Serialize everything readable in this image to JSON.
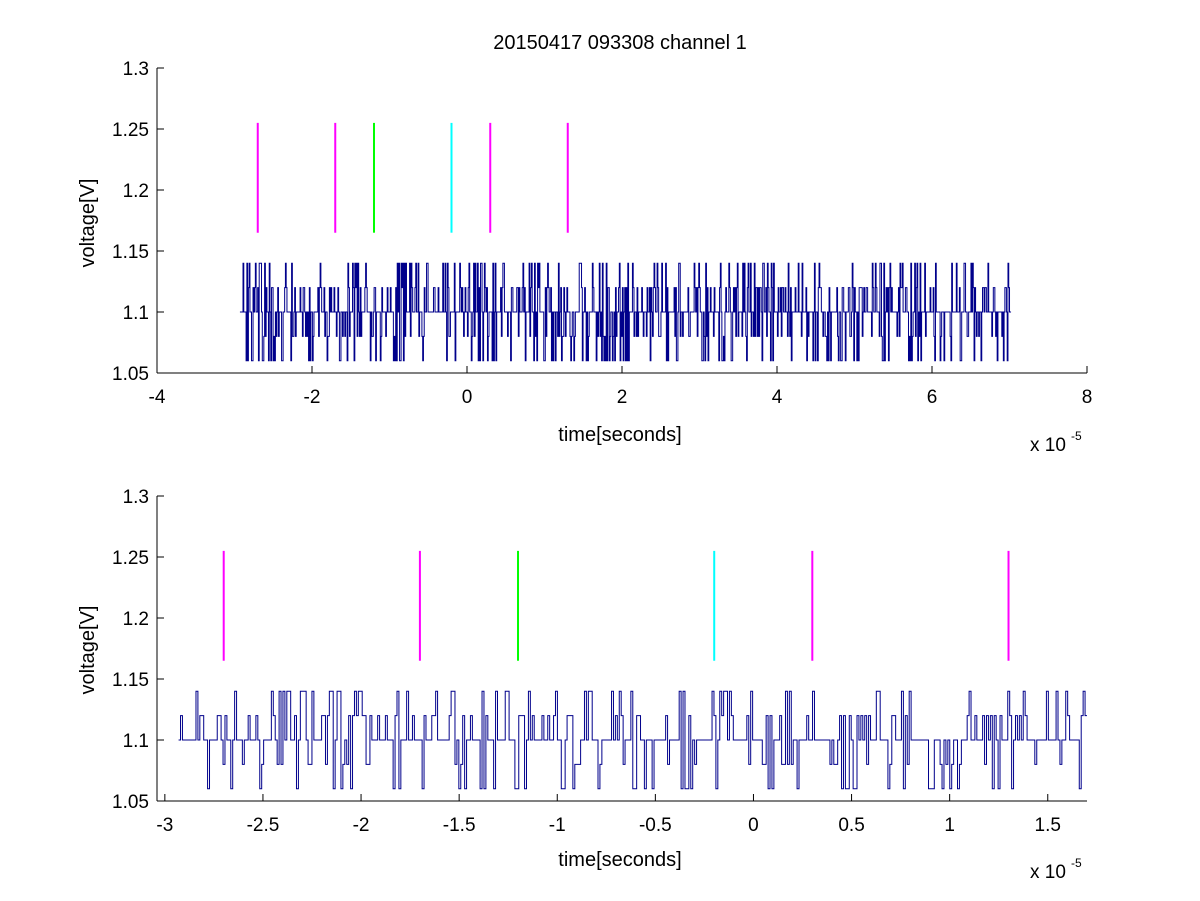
{
  "chart_data": [
    {
      "type": "line",
      "title": "20150417 093308 channel 1",
      "xlabel": "time[seconds]",
      "ylabel": "voltage[V]",
      "x_multiplier_base": "x 10",
      "x_multiplier_exponent": "-5",
      "xlim": [
        -4,
        8
      ],
      "ylim": [
        1.05,
        1.3
      ],
      "xticks": [
        -4,
        -2,
        0,
        2,
        4,
        6,
        8
      ],
      "xtick_labels": [
        "-4",
        "-2",
        "0",
        "2",
        "4",
        "6",
        "8"
      ],
      "yticks": [
        1.05,
        1.1,
        1.15,
        1.2,
        1.25,
        1.3
      ],
      "ytick_labels": [
        "1.05",
        "1.1",
        "1.15",
        "1.2",
        "1.25",
        "1.3"
      ],
      "signal": {
        "color": "#00008b",
        "x_start": -2.93,
        "x_end": 7.02,
        "samples": 1000,
        "seed": 417,
        "baseline": 1.1,
        "levels": [
          1.06,
          1.08,
          1.1,
          1.12,
          1.14
        ]
      },
      "markers": [
        {
          "x": -2.7,
          "y0": 1.165,
          "y1": 1.255,
          "color": "#ff00ff"
        },
        {
          "x": -1.7,
          "y0": 1.165,
          "y1": 1.255,
          "color": "#ff00ff"
        },
        {
          "x": -1.2,
          "y0": 1.165,
          "y1": 1.255,
          "color": "#00ff00"
        },
        {
          "x": -0.2,
          "y0": 1.165,
          "y1": 1.255,
          "color": "#00ffff"
        },
        {
          "x": 0.3,
          "y0": 1.165,
          "y1": 1.255,
          "color": "#ff00ff"
        },
        {
          "x": 1.3,
          "y0": 1.165,
          "y1": 1.255,
          "color": "#ff00ff"
        }
      ]
    },
    {
      "type": "line",
      "title": "",
      "xlabel": "time[seconds]",
      "ylabel": "voltage[V]",
      "x_multiplier_base": "x 10",
      "x_multiplier_exponent": "-5",
      "xlim": [
        -3.04,
        1.7
      ],
      "ylim": [
        1.05,
        1.3
      ],
      "xticks": [
        -3,
        -2.5,
        -2,
        -1.5,
        -1,
        -0.5,
        0,
        0.5,
        1,
        1.5
      ],
      "xtick_labels": [
        "-3",
        "-2.5",
        "-2",
        "-1.5",
        "-1",
        "-0.5",
        "0",
        "0.5",
        "1",
        "1.5"
      ],
      "yticks": [
        1.05,
        1.1,
        1.15,
        1.2,
        1.25,
        1.3
      ],
      "ytick_labels": [
        "1.05",
        "1.1",
        "1.15",
        "1.2",
        "1.25",
        "1.3"
      ],
      "signal": {
        "color": "#00008b",
        "x_start": -2.93,
        "x_end": 1.7,
        "samples": 470,
        "seed": 93308,
        "baseline": 1.1,
        "levels": [
          1.06,
          1.08,
          1.1,
          1.12,
          1.14
        ]
      },
      "markers": [
        {
          "x": -2.7,
          "y0": 1.165,
          "y1": 1.255,
          "color": "#ff00ff"
        },
        {
          "x": -1.7,
          "y0": 1.165,
          "y1": 1.255,
          "color": "#ff00ff"
        },
        {
          "x": -1.2,
          "y0": 1.165,
          "y1": 1.255,
          "color": "#00ff00"
        },
        {
          "x": -0.2,
          "y0": 1.165,
          "y1": 1.255,
          "color": "#00ffff"
        },
        {
          "x": 0.3,
          "y0": 1.165,
          "y1": 1.255,
          "color": "#ff00ff"
        },
        {
          "x": 1.3,
          "y0": 1.165,
          "y1": 1.255,
          "color": "#ff00ff"
        }
      ]
    }
  ]
}
